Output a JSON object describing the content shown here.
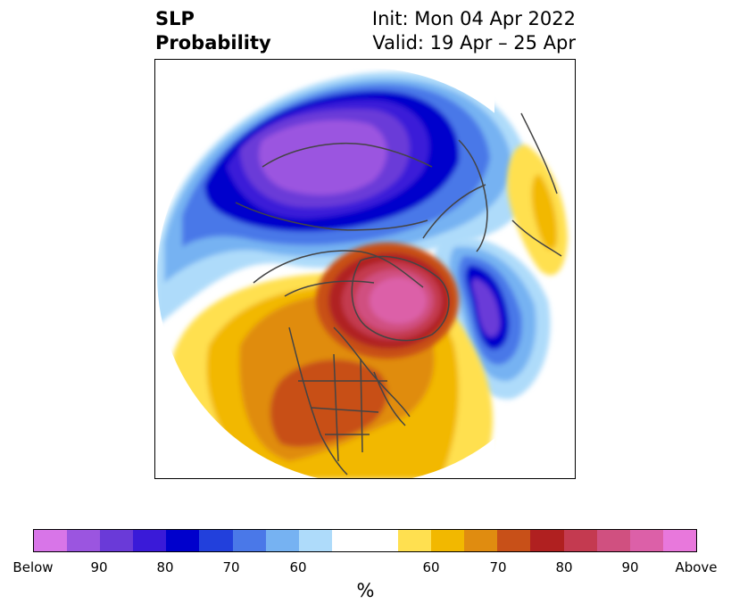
{
  "title": {
    "left_lines": [
      "SLP",
      "Probability"
    ],
    "right_lines": [
      "Init: Mon 04 Apr 2022",
      "Valid: 19 Apr – 25 Apr"
    ]
  },
  "map": {
    "projection": "north-polar-stereographic",
    "features": [
      "coastlines",
      "country borders",
      "US state borders",
      "Canadian province borders"
    ]
  },
  "colorbar": {
    "colors": [
      "#d875e8",
      "#9b55e0",
      "#6a3ad8",
      "#3a1ad8",
      "#0000cc",
      "#2240dc",
      "#4a78e8",
      "#76b2f2",
      "#aedbfa",
      "#ffffff",
      "#ffe050",
      "#f2b800",
      "#e08c10",
      "#c85018",
      "#b02020",
      "#c43a50",
      "#d05080",
      "#dc60a8",
      "#e878dc"
    ],
    "tick_labels": [
      "Below",
      "90",
      "80",
      "70",
      "60",
      "60",
      "70",
      "80",
      "90",
      "Above"
    ],
    "unit": "%"
  },
  "legend": {
    "below_color": "#d875e8",
    "above_color": "#e878dc",
    "neutral_color": "#ffffff"
  }
}
